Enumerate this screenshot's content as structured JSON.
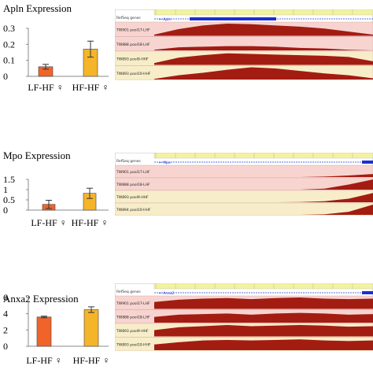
{
  "panels": [
    {
      "gene": "Apln",
      "title": "Apln Expression",
      "chart_data": {
        "type": "bar",
        "title": "Apln Expression",
        "categories": [
          "LF-HF ♀",
          "HF-HF ♀"
        ],
        "values": [
          0.06,
          0.17
        ],
        "errors": [
          0.015,
          0.05
        ],
        "colors": [
          "#f0642a",
          "#f5b52a"
        ],
        "yticks": [
          0,
          0.1,
          0.2,
          0.3
        ],
        "ytick_labels": [
          "0",
          "0.1",
          "0.2",
          "0.3"
        ],
        "ylim": [
          0,
          0.3
        ],
        "xlabel": "",
        "ylabel": ""
      },
      "browser": {
        "refseq_label": "RefSeq genes",
        "gene_label": "Apln",
        "tracks": [
          {
            "label": "TW901 pool17-LHF",
            "bg": "#f7d4d0",
            "profile": [
              0.1,
              0.55,
              0.85,
              1,
              0.95,
              0.85,
              0.75,
              0.6,
              0.35,
              0.1
            ]
          },
          {
            "label": "TW888 pool18-LHF",
            "bg": "#f7d4d0",
            "profile": [
              0.05,
              0.25,
              0.3,
              0.35,
              0.35,
              0.3,
              0.2,
              0.15,
              0.05,
              0.0
            ]
          },
          {
            "label": "TW893 pool9-HHF",
            "bg": "#f7eec9",
            "profile": [
              0.15,
              0.6,
              0.8,
              0.95,
              0.9,
              0.85,
              0.8,
              0.75,
              0.65,
              0.3
            ]
          },
          {
            "label": "TW893 pool10-HHF",
            "bg": "#f7eec9",
            "profile": [
              0.05,
              0.35,
              0.55,
              0.8,
              1,
              0.9,
              0.7,
              0.5,
              0.35,
              0.1
            ]
          }
        ]
      }
    },
    {
      "gene": "Mpo",
      "title": "Mpo Expression",
      "chart_data": {
        "type": "bar",
        "title": "Mpo Expression",
        "categories": [
          "LF-HF ♀",
          "HF-HF ♀"
        ],
        "values": [
          0.28,
          0.82
        ],
        "errors": [
          0.2,
          0.25
        ],
        "colors": [
          "#f0642a",
          "#f5b52a"
        ],
        "yticks": [
          0,
          0.5,
          1,
          1.5
        ],
        "ytick_labels": [
          "0",
          "0.5",
          "1",
          "1.5"
        ],
        "ylim": [
          0,
          1.5
        ],
        "xlabel": "",
        "ylabel": ""
      },
      "browser": {
        "refseq_label": "RefSeq genes",
        "gene_label": "Mpo",
        "tracks": [
          {
            "label": "TW901 pool17-LHF",
            "bg": "#f7d4d0",
            "profile": [
              0,
              0,
              0,
              0,
              0,
              0,
              0,
              0.05,
              0.15,
              0.3
            ]
          },
          {
            "label": "TW888 pool18-LHF",
            "bg": "#f7d4d0",
            "profile": [
              0,
              0,
              0,
              0,
              0,
              0,
              0,
              0.1,
              0.5,
              1
            ]
          },
          {
            "label": "TW893 pool9-HHF",
            "bg": "#f7eec9",
            "profile": [
              0,
              0,
              0,
              0,
              0,
              0,
              0.02,
              0.1,
              0.35,
              0.9
            ]
          },
          {
            "label": "TW894 pool10-HHF",
            "bg": "#f7eec9",
            "profile": [
              0,
              0,
              0,
              0,
              0,
              0,
              0,
              0.05,
              0.3,
              1
            ]
          }
        ]
      }
    },
    {
      "gene": "Anxa2",
      "title": "Anxa2 Expression",
      "chart_data": {
        "type": "bar",
        "title": "Anxa2 Expression",
        "categories": [
          "LF-HF ♀",
          "HF-HF ♀"
        ],
        "values": [
          3.6,
          4.5
        ],
        "errors": [
          0.1,
          0.35
        ],
        "colors": [
          "#f0642a",
          "#f5b52a"
        ],
        "yticks": [
          0,
          2,
          4,
          6
        ],
        "ytick_labels": [
          "0",
          "2",
          "4",
          "6"
        ],
        "ylim": [
          0,
          6
        ],
        "xlabel": "",
        "ylabel": ""
      },
      "browser": {
        "refseq_label": "RefSeq genes",
        "gene_label": "Anxa2",
        "tracks": [
          {
            "label": "TW901 pool17-LHF",
            "bg": "#f7d4d0",
            "profile": [
              0.6,
              0.8,
              0.9,
              0.95,
              0.85,
              0.95,
              1,
              0.9,
              0.85,
              0.9
            ]
          },
          {
            "label": "TW888 pool18-LHF",
            "bg": "#f7d4d0",
            "profile": [
              0.5,
              0.7,
              0.75,
              0.8,
              0.7,
              0.8,
              0.85,
              0.8,
              0.7,
              0.75
            ]
          },
          {
            "label": "TW893 pool9-HHF",
            "bg": "#f7eec9",
            "profile": [
              0.55,
              0.8,
              0.9,
              1,
              0.9,
              0.95,
              1,
              0.95,
              0.85,
              0.9
            ]
          },
          {
            "label": "TW893 pool10-HHF",
            "bg": "#f7eec9",
            "profile": [
              0.5,
              0.7,
              0.85,
              0.9,
              0.85,
              0.9,
              0.95,
              0.85,
              0.8,
              0.85
            ]
          }
        ]
      }
    }
  ],
  "colors": {
    "signal": "#a31c12",
    "ruler_bg": "#f2f2a0",
    "gene_blue": "#1c2fd1",
    "axis": "#888888"
  }
}
